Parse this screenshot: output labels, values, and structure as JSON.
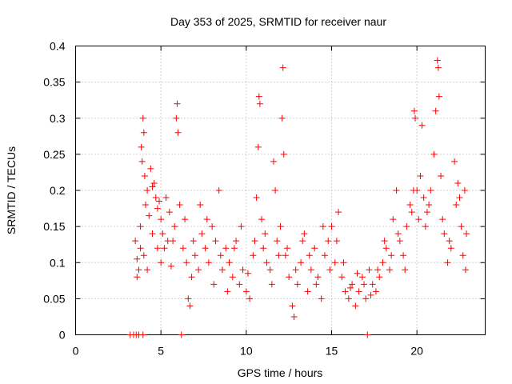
{
  "chart_data": {
    "type": "scatter",
    "title": "Day 353 of 2025, SRMTID for receiver naur",
    "xlabel": "GPS time / hours",
    "ylabel": "SRMTID / TECUs",
    "xlim": [
      0,
      24
    ],
    "ylim": [
      0,
      0.4
    ],
    "x_ticks": [
      0,
      5,
      10,
      15,
      20
    ],
    "x_tick_labels": [
      "0",
      "5",
      "10",
      "15",
      "20"
    ],
    "y_ticks": [
      0,
      0.05,
      0.1,
      0.15,
      0.2,
      0.25,
      0.3,
      0.35,
      0.4
    ],
    "y_tick_labels": [
      "0",
      "0.05",
      "0.1",
      "0.15",
      "0.2",
      "0.25",
      "0.3",
      "0.35",
      "0.4"
    ],
    "grid": true,
    "marker": "plus",
    "color": "#ff0000",
    "series": [
      {
        "name": "SRMTID",
        "points": [
          [
            3.2,
            0
          ],
          [
            3.4,
            0
          ],
          [
            3.55,
            0
          ],
          [
            3.7,
            0
          ],
          [
            3.95,
            0
          ],
          [
            6.2,
            0
          ],
          [
            17.1,
            0
          ],
          [
            3.5,
            0.13
          ],
          [
            3.6,
            0.105
          ],
          [
            3.7,
            0.09
          ],
          [
            3.8,
            0.15
          ],
          [
            3.85,
            0.26
          ],
          [
            3.9,
            0.24
          ],
          [
            3.95,
            0.3
          ],
          [
            4.0,
            0.28
          ],
          [
            4.05,
            0.22
          ],
          [
            4.1,
            0.18
          ],
          [
            4.2,
            0.2
          ],
          [
            4.3,
            0.165
          ],
          [
            4.4,
            0.23
          ],
          [
            4.5,
            0.205
          ],
          [
            4.6,
            0.21
          ],
          [
            4.7,
            0.19
          ],
          [
            4.8,
            0.175
          ],
          [
            4.9,
            0.185
          ],
          [
            5.0,
            0.16
          ],
          [
            3.6,
            0.08
          ],
          [
            3.8,
            0.12
          ],
          [
            4.0,
            0.11
          ],
          [
            4.2,
            0.09
          ],
          [
            4.5,
            0.14
          ],
          [
            4.8,
            0.12
          ],
          [
            5.0,
            0.1
          ],
          [
            5.2,
            0.12
          ],
          [
            5.4,
            0.13
          ],
          [
            5.6,
            0.095
          ],
          [
            5.8,
            0.15
          ],
          [
            5.9,
            0.3
          ],
          [
            5.95,
            0.32
          ],
          [
            6.0,
            0.28
          ],
          [
            6.1,
            0.18
          ],
          [
            6.3,
            0.12
          ],
          [
            6.5,
            0.1
          ],
          [
            6.6,
            0.05
          ],
          [
            6.7,
            0.04
          ],
          [
            6.8,
            0.08
          ],
          [
            7.0,
            0.11
          ],
          [
            7.2,
            0.09
          ],
          [
            7.4,
            0.14
          ],
          [
            7.6,
            0.12
          ],
          [
            7.8,
            0.1
          ],
          [
            8.0,
            0.15
          ],
          [
            8.2,
            0.13
          ],
          [
            8.4,
            0.2
          ],
          [
            8.6,
            0.09
          ],
          [
            8.8,
            0.12
          ],
          [
            9.0,
            0.1
          ],
          [
            9.2,
            0.08
          ],
          [
            9.4,
            0.13
          ],
          [
            9.6,
            0.07
          ],
          [
            9.8,
            0.09
          ],
          [
            10.0,
            0.06
          ],
          [
            10.2,
            0.05
          ],
          [
            10.4,
            0.11
          ],
          [
            5.1,
            0.14
          ],
          [
            5.3,
            0.19
          ],
          [
            5.5,
            0.17
          ],
          [
            5.7,
            0.13
          ],
          [
            6.4,
            0.16
          ],
          [
            6.9,
            0.13
          ],
          [
            7.3,
            0.18
          ],
          [
            7.7,
            0.16
          ],
          [
            8.1,
            0.07
          ],
          [
            8.5,
            0.11
          ],
          [
            8.9,
            0.06
          ],
          [
            9.3,
            0.12
          ],
          [
            9.7,
            0.15
          ],
          [
            10.1,
            0.085
          ],
          [
            10.5,
            0.13
          ],
          [
            10.6,
            0.19
          ],
          [
            10.7,
            0.26
          ],
          [
            10.75,
            0.33
          ],
          [
            10.8,
            0.32
          ],
          [
            10.9,
            0.16
          ],
          [
            11.0,
            0.12
          ],
          [
            11.2,
            0.1
          ],
          [
            11.4,
            0.09
          ],
          [
            11.6,
            0.24
          ],
          [
            11.7,
            0.2
          ],
          [
            11.8,
            0.13
          ],
          [
            12.0,
            0.15
          ],
          [
            12.1,
            0.3
          ],
          [
            12.15,
            0.37
          ],
          [
            12.2,
            0.25
          ],
          [
            12.3,
            0.11
          ],
          [
            12.5,
            0.08
          ],
          [
            12.7,
            0.04
          ],
          [
            12.8,
            0.025
          ],
          [
            13.0,
            0.07
          ],
          [
            13.2,
            0.1
          ],
          [
            13.4,
            0.14
          ],
          [
            13.6,
            0.06
          ],
          [
            13.8,
            0.09
          ],
          [
            14.0,
            0.12
          ],
          [
            14.2,
            0.08
          ],
          [
            14.4,
            0.05
          ],
          [
            14.6,
            0.11
          ],
          [
            14.8,
            0.13
          ],
          [
            15.0,
            0.15
          ],
          [
            15.2,
            0.1
          ],
          [
            15.4,
            0.17
          ],
          [
            15.6,
            0.08
          ],
          [
            15.8,
            0.06
          ],
          [
            16.0,
            0.05
          ],
          [
            16.2,
            0.07
          ],
          [
            16.4,
            0.04
          ],
          [
            16.6,
            0.06
          ],
          [
            16.8,
            0.08
          ],
          [
            17.0,
            0.05
          ],
          [
            17.2,
            0.09
          ],
          [
            17.4,
            0.07
          ],
          [
            17.6,
            0.06
          ],
          [
            17.8,
            0.08
          ],
          [
            18.0,
            0.1
          ],
          [
            18.2,
            0.12
          ],
          [
            18.4,
            0.09
          ],
          [
            18.6,
            0.16
          ],
          [
            18.8,
            0.2
          ],
          [
            19.0,
            0.13
          ],
          [
            19.2,
            0.11
          ],
          [
            19.4,
            0.15
          ],
          [
            19.6,
            0.18
          ],
          [
            19.8,
            0.2
          ],
          [
            19.85,
            0.31
          ],
          [
            19.9,
            0.3
          ],
          [
            20.0,
            0.2
          ],
          [
            20.1,
            0.16
          ],
          [
            20.2,
            0.22
          ],
          [
            20.3,
            0.29
          ],
          [
            20.4,
            0.19
          ],
          [
            20.5,
            0.15
          ],
          [
            20.6,
            0.17
          ],
          [
            20.8,
            0.2
          ],
          [
            21.0,
            0.25
          ],
          [
            21.1,
            0.31
          ],
          [
            21.2,
            0.38
          ],
          [
            21.25,
            0.37
          ],
          [
            21.3,
            0.33
          ],
          [
            21.4,
            0.22
          ],
          [
            21.6,
            0.14
          ],
          [
            21.8,
            0.1
          ],
          [
            22.0,
            0.12
          ],
          [
            22.2,
            0.24
          ],
          [
            22.4,
            0.21
          ],
          [
            22.5,
            0.19
          ],
          [
            22.6,
            0.15
          ],
          [
            22.7,
            0.11
          ],
          [
            22.8,
            0.2
          ],
          [
            22.9,
            0.14
          ],
          [
            11.1,
            0.14
          ],
          [
            11.5,
            0.07
          ],
          [
            11.9,
            0.11
          ],
          [
            12.4,
            0.12
          ],
          [
            12.9,
            0.09
          ],
          [
            13.3,
            0.13
          ],
          [
            13.7,
            0.11
          ],
          [
            14.1,
            0.07
          ],
          [
            14.5,
            0.15
          ],
          [
            14.9,
            0.09
          ],
          [
            15.3,
            0.13
          ],
          [
            15.7,
            0.1
          ],
          [
            16.1,
            0.065
          ],
          [
            16.5,
            0.085
          ],
          [
            16.9,
            0.07
          ],
          [
            17.3,
            0.055
          ],
          [
            17.7,
            0.09
          ],
          [
            18.1,
            0.13
          ],
          [
            18.5,
            0.11
          ],
          [
            18.9,
            0.14
          ],
          [
            19.3,
            0.09
          ],
          [
            19.7,
            0.17
          ],
          [
            20.7,
            0.18
          ],
          [
            21.5,
            0.16
          ],
          [
            21.9,
            0.13
          ],
          [
            22.3,
            0.18
          ],
          [
            22.85,
            0.09
          ]
        ]
      }
    ]
  }
}
